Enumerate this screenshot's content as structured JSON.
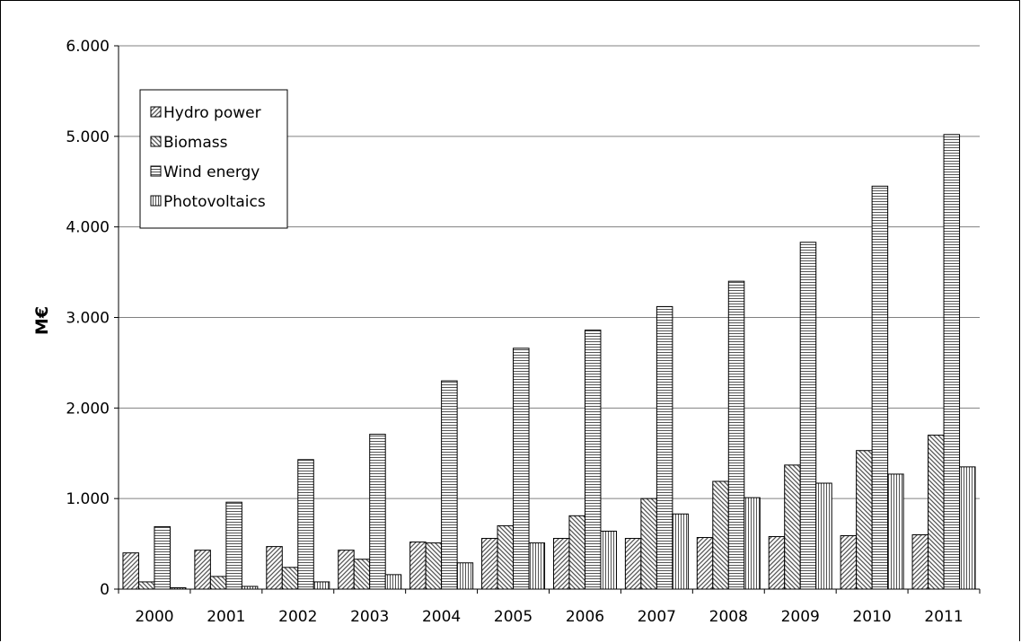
{
  "chart_data": {
    "type": "bar",
    "ylabel": "M€",
    "xlabel": "",
    "title": "",
    "ylim": [
      0,
      6000
    ],
    "yticks": [
      0,
      1000,
      2000,
      3000,
      4000,
      5000,
      6000
    ],
    "ytick_labels": [
      "0",
      "1.000",
      "2.000",
      "3.000",
      "4.000",
      "5.000",
      "6.000"
    ],
    "grid": true,
    "legend_position": "top-left",
    "categories": [
      "2000",
      "2001",
      "2002",
      "2003",
      "2004",
      "2005",
      "2006",
      "2007",
      "2008",
      "2009",
      "2010",
      "2011"
    ],
    "series": [
      {
        "name": "Hydro power",
        "pattern": "diag-right",
        "values": [
          400,
          430,
          470,
          430,
          520,
          560,
          560,
          560,
          570,
          580,
          590,
          600
        ]
      },
      {
        "name": "Biomass",
        "pattern": "diag-left",
        "values": [
          80,
          140,
          240,
          330,
          510,
          700,
          810,
          1000,
          1190,
          1370,
          1530,
          1700
        ]
      },
      {
        "name": "Wind energy",
        "pattern": "horizontal",
        "values": [
          690,
          960,
          1430,
          1710,
          2300,
          2660,
          2860,
          3120,
          3400,
          3830,
          4450,
          5020
        ]
      },
      {
        "name": "Photovoltaics",
        "pattern": "vertical",
        "values": [
          15,
          30,
          80,
          160,
          290,
          510,
          640,
          830,
          1010,
          1170,
          1270,
          1350
        ]
      }
    ]
  }
}
